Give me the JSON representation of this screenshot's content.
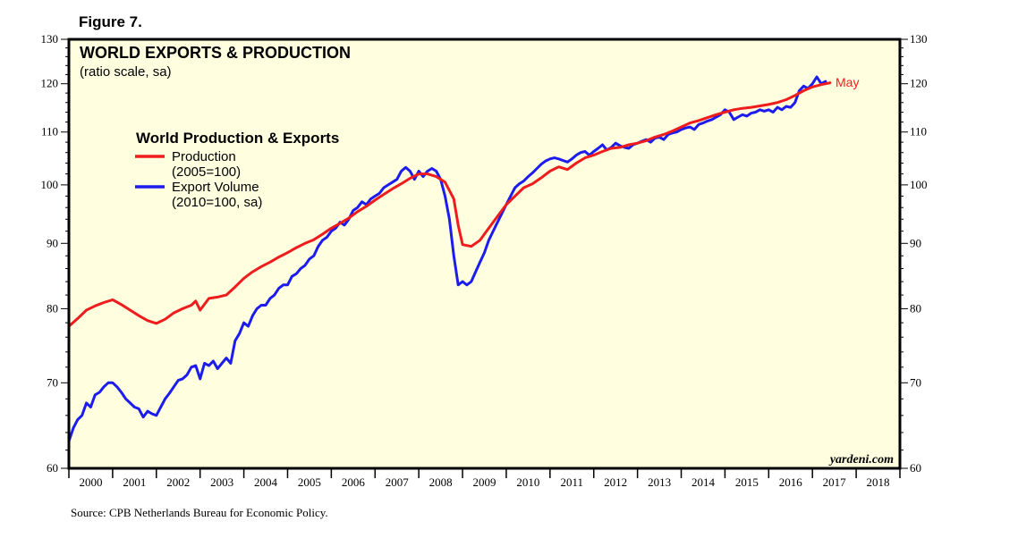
{
  "figure_label": "Figure 7.",
  "source": "Source: CPB Netherlands Bureau for Economic Policy.",
  "watermark": "yardeni.com",
  "annotation": "May",
  "colors": {
    "production": "#ee1c1c",
    "exports": "#1c1cee",
    "plot_bg": "#ffffe0",
    "annotation": "#ee1c1c"
  },
  "chart_data": {
    "type": "line",
    "title": "WORLD EXPORTS & PRODUCTION",
    "subtitle": "(ratio scale, sa)",
    "legend_title": "World Production & Exports",
    "legend_placement": "upper-left",
    "scale": "log",
    "ylim": [
      60,
      130
    ],
    "xlim": [
      2000,
      2019
    ],
    "y_ticks": [
      60,
      70,
      80,
      90,
      100,
      110,
      120,
      130
    ],
    "y_minor_ticks": [
      62,
      64,
      66,
      68,
      72,
      74,
      76,
      78,
      82,
      84,
      86,
      88,
      92,
      94,
      96,
      98,
      102,
      104,
      106,
      108,
      112,
      114,
      116,
      118,
      122,
      124,
      126,
      128
    ],
    "x_tick_labels": [
      "2000",
      "2001",
      "2002",
      "2003",
      "2004",
      "2005",
      "2006",
      "2007",
      "2008",
      "2009",
      "2010",
      "2011",
      "2012",
      "2013",
      "2014",
      "2015",
      "2016",
      "2017",
      "2018"
    ],
    "series": [
      {
        "name": "Production",
        "legend_lines": [
          "Production",
          "(2005=100)"
        ],
        "points": [
          [
            2000.0,
            77.5
          ],
          [
            2000.2,
            78.6
          ],
          [
            2000.4,
            79.8
          ],
          [
            2000.6,
            80.4
          ],
          [
            2000.8,
            80.9
          ],
          [
            2001.0,
            81.3
          ],
          [
            2001.2,
            80.6
          ],
          [
            2001.4,
            79.8
          ],
          [
            2001.6,
            79.0
          ],
          [
            2001.8,
            78.3
          ],
          [
            2002.0,
            77.9
          ],
          [
            2002.2,
            78.5
          ],
          [
            2002.4,
            79.4
          ],
          [
            2002.6,
            80.0
          ],
          [
            2002.8,
            80.5
          ],
          [
            2002.9,
            81.1
          ],
          [
            2003.0,
            79.8
          ],
          [
            2003.2,
            81.5
          ],
          [
            2003.4,
            81.7
          ],
          [
            2003.6,
            82.0
          ],
          [
            2003.8,
            83.2
          ],
          [
            2004.0,
            84.5
          ],
          [
            2004.2,
            85.5
          ],
          [
            2004.4,
            86.3
          ],
          [
            2004.6,
            87.0
          ],
          [
            2004.8,
            87.8
          ],
          [
            2005.0,
            88.5
          ],
          [
            2005.2,
            89.3
          ],
          [
            2005.4,
            90.0
          ],
          [
            2005.6,
            90.6
          ],
          [
            2005.8,
            91.5
          ],
          [
            2006.0,
            92.5
          ],
          [
            2006.2,
            93.3
          ],
          [
            2006.4,
            94.2
          ],
          [
            2006.6,
            95.3
          ],
          [
            2006.8,
            96.2
          ],
          [
            2007.0,
            97.3
          ],
          [
            2007.2,
            98.3
          ],
          [
            2007.4,
            99.3
          ],
          [
            2007.6,
            100.2
          ],
          [
            2007.8,
            101.2
          ],
          [
            2008.0,
            102.0
          ],
          [
            2008.2,
            102.0
          ],
          [
            2008.4,
            101.5
          ],
          [
            2008.6,
            100.5
          ],
          [
            2008.8,
            97.5
          ],
          [
            2008.9,
            93.0
          ],
          [
            2009.0,
            89.8
          ],
          [
            2009.2,
            89.5
          ],
          [
            2009.4,
            90.5
          ],
          [
            2009.6,
            92.5
          ],
          [
            2009.8,
            94.5
          ],
          [
            2010.0,
            96.5
          ],
          [
            2010.2,
            98.0
          ],
          [
            2010.4,
            99.5
          ],
          [
            2010.6,
            100.2
          ],
          [
            2010.8,
            101.3
          ],
          [
            2011.0,
            102.5
          ],
          [
            2011.2,
            103.3
          ],
          [
            2011.4,
            102.8
          ],
          [
            2011.6,
            104.0
          ],
          [
            2011.8,
            105.0
          ],
          [
            2012.0,
            105.5
          ],
          [
            2012.2,
            106.2
          ],
          [
            2012.4,
            106.8
          ],
          [
            2012.6,
            107.0
          ],
          [
            2012.8,
            107.5
          ],
          [
            2013.0,
            107.8
          ],
          [
            2013.2,
            108.3
          ],
          [
            2013.4,
            109.0
          ],
          [
            2013.6,
            109.5
          ],
          [
            2013.8,
            110.2
          ],
          [
            2014.0,
            111.0
          ],
          [
            2014.2,
            111.8
          ],
          [
            2014.4,
            112.3
          ],
          [
            2014.6,
            112.9
          ],
          [
            2014.8,
            113.5
          ],
          [
            2015.0,
            114.0
          ],
          [
            2015.2,
            114.5
          ],
          [
            2015.4,
            114.8
          ],
          [
            2015.6,
            115.0
          ],
          [
            2015.8,
            115.3
          ],
          [
            2016.0,
            115.6
          ],
          [
            2016.2,
            116.0
          ],
          [
            2016.4,
            116.6
          ],
          [
            2016.6,
            117.5
          ],
          [
            2016.8,
            118.5
          ],
          [
            2017.0,
            119.3
          ],
          [
            2017.2,
            119.8
          ],
          [
            2017.4,
            120.2
          ]
        ]
      },
      {
        "name": "Export Volume",
        "legend_lines": [
          "Export Volume",
          "(2010=100, sa)"
        ],
        "points": [
          [
            2000.0,
            63.0
          ],
          [
            2000.1,
            64.5
          ],
          [
            2000.2,
            65.5
          ],
          [
            2000.3,
            66.0
          ],
          [
            2000.4,
            67.5
          ],
          [
            2000.5,
            67.0
          ],
          [
            2000.6,
            68.5
          ],
          [
            2000.7,
            68.8
          ],
          [
            2000.8,
            69.5
          ],
          [
            2000.9,
            70.0
          ],
          [
            2001.0,
            70.0
          ],
          [
            2001.1,
            69.5
          ],
          [
            2001.2,
            68.8
          ],
          [
            2001.3,
            68.0
          ],
          [
            2001.4,
            67.5
          ],
          [
            2001.5,
            67.0
          ],
          [
            2001.6,
            66.8
          ],
          [
            2001.7,
            65.8
          ],
          [
            2001.8,
            66.5
          ],
          [
            2001.9,
            66.2
          ],
          [
            2002.0,
            66.0
          ],
          [
            2002.1,
            67.0
          ],
          [
            2002.2,
            68.0
          ],
          [
            2002.3,
            68.7
          ],
          [
            2002.4,
            69.5
          ],
          [
            2002.5,
            70.3
          ],
          [
            2002.6,
            70.5
          ],
          [
            2002.7,
            71.0
          ],
          [
            2002.8,
            72.0
          ],
          [
            2002.9,
            72.2
          ],
          [
            2003.0,
            70.5
          ],
          [
            2003.1,
            72.5
          ],
          [
            2003.2,
            72.2
          ],
          [
            2003.3,
            72.8
          ],
          [
            2003.4,
            71.8
          ],
          [
            2003.5,
            72.5
          ],
          [
            2003.6,
            73.2
          ],
          [
            2003.7,
            72.5
          ],
          [
            2003.8,
            75.5
          ],
          [
            2003.9,
            76.5
          ],
          [
            2004.0,
            78.0
          ],
          [
            2004.1,
            77.5
          ],
          [
            2004.2,
            79.0
          ],
          [
            2004.3,
            80.0
          ],
          [
            2004.4,
            80.5
          ],
          [
            2004.5,
            80.5
          ],
          [
            2004.6,
            81.5
          ],
          [
            2004.7,
            82.0
          ],
          [
            2004.8,
            83.0
          ],
          [
            2004.9,
            83.5
          ],
          [
            2005.0,
            83.5
          ],
          [
            2005.1,
            84.8
          ],
          [
            2005.2,
            85.2
          ],
          [
            2005.3,
            86.0
          ],
          [
            2005.4,
            86.5
          ],
          [
            2005.5,
            87.5
          ],
          [
            2005.6,
            88.0
          ],
          [
            2005.7,
            89.5
          ],
          [
            2005.8,
            90.5
          ],
          [
            2005.9,
            91.0
          ],
          [
            2006.0,
            92.0
          ],
          [
            2006.1,
            92.5
          ],
          [
            2006.2,
            93.5
          ],
          [
            2006.3,
            93.0
          ],
          [
            2006.4,
            94.0
          ],
          [
            2006.5,
            95.5
          ],
          [
            2006.6,
            96.0
          ],
          [
            2006.7,
            97.0
          ],
          [
            2006.8,
            96.5
          ],
          [
            2006.9,
            97.5
          ],
          [
            2007.0,
            98.0
          ],
          [
            2007.1,
            98.5
          ],
          [
            2007.2,
            99.5
          ],
          [
            2007.3,
            100.0
          ],
          [
            2007.4,
            100.5
          ],
          [
            2007.5,
            101.0
          ],
          [
            2007.6,
            102.5
          ],
          [
            2007.7,
            103.2
          ],
          [
            2007.8,
            102.5
          ],
          [
            2007.9,
            101.0
          ],
          [
            2008.0,
            102.5
          ],
          [
            2008.1,
            101.5
          ],
          [
            2008.2,
            102.5
          ],
          [
            2008.3,
            103.0
          ],
          [
            2008.4,
            102.5
          ],
          [
            2008.5,
            101.0
          ],
          [
            2008.6,
            98.0
          ],
          [
            2008.7,
            94.0
          ],
          [
            2008.8,
            88.0
          ],
          [
            2008.9,
            83.5
          ],
          [
            2009.0,
            84.0
          ],
          [
            2009.1,
            83.5
          ],
          [
            2009.2,
            84.0
          ],
          [
            2009.3,
            85.5
          ],
          [
            2009.4,
            87.0
          ],
          [
            2009.5,
            88.5
          ],
          [
            2009.6,
            90.5
          ],
          [
            2009.7,
            92.0
          ],
          [
            2009.8,
            93.5
          ],
          [
            2009.9,
            95.0
          ],
          [
            2010.0,
            96.5
          ],
          [
            2010.1,
            98.0
          ],
          [
            2010.2,
            99.5
          ],
          [
            2010.3,
            100.2
          ],
          [
            2010.4,
            100.7
          ],
          [
            2010.5,
            101.5
          ],
          [
            2010.6,
            102.2
          ],
          [
            2010.7,
            103.0
          ],
          [
            2010.8,
            103.8
          ],
          [
            2010.9,
            104.4
          ],
          [
            2011.0,
            104.8
          ],
          [
            2011.1,
            105.0
          ],
          [
            2011.2,
            104.8
          ],
          [
            2011.3,
            104.5
          ],
          [
            2011.4,
            104.2
          ],
          [
            2011.5,
            104.8
          ],
          [
            2011.6,
            105.5
          ],
          [
            2011.7,
            106.0
          ],
          [
            2011.8,
            106.2
          ],
          [
            2011.9,
            105.5
          ],
          [
            2012.0,
            106.2
          ],
          [
            2012.1,
            106.8
          ],
          [
            2012.2,
            107.5
          ],
          [
            2012.3,
            106.5
          ],
          [
            2012.4,
            107.0
          ],
          [
            2012.5,
            107.8
          ],
          [
            2012.6,
            107.3
          ],
          [
            2012.7,
            107.0
          ],
          [
            2012.8,
            106.8
          ],
          [
            2012.9,
            107.5
          ],
          [
            2013.0,
            107.8
          ],
          [
            2013.1,
            108.2
          ],
          [
            2013.2,
            108.5
          ],
          [
            2013.3,
            108.0
          ],
          [
            2013.4,
            108.8
          ],
          [
            2013.5,
            109.0
          ],
          [
            2013.6,
            108.5
          ],
          [
            2013.7,
            109.5
          ],
          [
            2013.8,
            109.8
          ],
          [
            2013.9,
            110.0
          ],
          [
            2014.0,
            110.5
          ],
          [
            2014.1,
            110.8
          ],
          [
            2014.2,
            111.0
          ],
          [
            2014.3,
            110.5
          ],
          [
            2014.4,
            111.5
          ],
          [
            2014.5,
            111.8
          ],
          [
            2014.6,
            112.2
          ],
          [
            2014.7,
            112.5
          ],
          [
            2014.8,
            113.0
          ],
          [
            2014.9,
            113.5
          ],
          [
            2015.0,
            114.5
          ],
          [
            2015.1,
            114.0
          ],
          [
            2015.2,
            112.5
          ],
          [
            2015.3,
            113.0
          ],
          [
            2015.4,
            113.5
          ],
          [
            2015.5,
            113.2
          ],
          [
            2015.6,
            113.8
          ],
          [
            2015.7,
            114.0
          ],
          [
            2015.8,
            114.5
          ],
          [
            2015.9,
            114.2
          ],
          [
            2016.0,
            114.5
          ],
          [
            2016.1,
            114.0
          ],
          [
            2016.2,
            115.0
          ],
          [
            2016.3,
            114.5
          ],
          [
            2016.4,
            115.2
          ],
          [
            2016.5,
            115.0
          ],
          [
            2016.6,
            116.0
          ],
          [
            2016.7,
            118.5
          ],
          [
            2016.8,
            119.5
          ],
          [
            2016.9,
            119.0
          ],
          [
            2017.0,
            120.0
          ],
          [
            2017.1,
            121.5
          ],
          [
            2017.2,
            120.0
          ],
          [
            2017.3,
            120.5
          ]
        ]
      }
    ]
  }
}
